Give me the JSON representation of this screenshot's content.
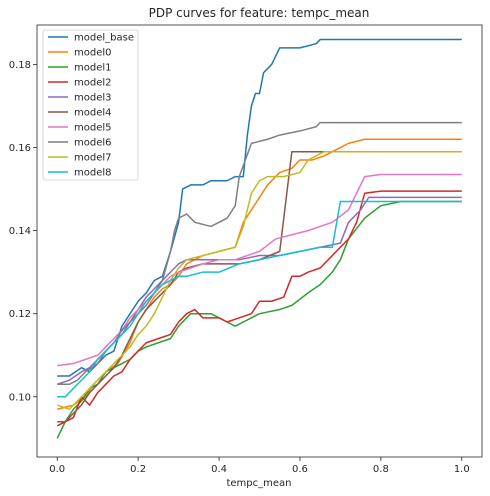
{
  "chart_data": {
    "type": "line",
    "title": "PDP curves for feature: tempc_mean",
    "xlabel": "tempc_mean",
    "ylabel": "",
    "xlim": [
      -0.05,
      1.05
    ],
    "ylim": [
      0.0855,
      0.1895
    ],
    "xticks": [
      0.0,
      0.2,
      0.4,
      0.6,
      0.8,
      1.0
    ],
    "xtick_labels": [
      "0.0",
      "0.2",
      "0.4",
      "0.6",
      "0.8",
      "1.0"
    ],
    "yticks": [
      0.1,
      0.12,
      0.14,
      0.16,
      0.18
    ],
    "ytick_labels": [
      "0.10",
      "0.12",
      "0.14",
      "0.16",
      "0.18"
    ],
    "grid": false,
    "legend_position": "top-left",
    "series": [
      {
        "name": "model_base",
        "color": "#1f77b4",
        "x": [
          0,
          0.03,
          0.06,
          0.08,
          0.1,
          0.12,
          0.14,
          0.16,
          0.18,
          0.2,
          0.22,
          0.24,
          0.26,
          0.28,
          0.3,
          0.31,
          0.33,
          0.36,
          0.38,
          0.4,
          0.42,
          0.44,
          0.46,
          0.47,
          0.48,
          0.49,
          0.5,
          0.51,
          0.53,
          0.55,
          0.6,
          0.64,
          0.65,
          0.7,
          0.8,
          1.0
        ],
        "y": [
          0.105,
          0.105,
          0.107,
          0.106,
          0.108,
          0.11,
          0.111,
          0.117,
          0.12,
          0.123,
          0.125,
          0.128,
          0.129,
          0.135,
          0.142,
          0.15,
          0.151,
          0.151,
          0.152,
          0.152,
          0.152,
          0.153,
          0.153,
          0.163,
          0.17,
          0.173,
          0.173,
          0.178,
          0.18,
          0.184,
          0.184,
          0.185,
          0.186,
          0.186,
          0.186,
          0.186
        ]
      },
      {
        "name": "model0",
        "color": "#ff7f0e",
        "x": [
          0,
          0.04,
          0.07,
          0.09,
          0.12,
          0.15,
          0.18,
          0.2,
          0.22,
          0.24,
          0.26,
          0.28,
          0.3,
          0.32,
          0.36,
          0.4,
          0.44,
          0.46,
          0.48,
          0.5,
          0.52,
          0.55,
          0.58,
          0.6,
          0.63,
          0.66,
          0.68,
          0.7,
          0.72,
          0.76,
          0.8,
          1.0
        ],
        "y": [
          0.097,
          0.098,
          0.1,
          0.103,
          0.106,
          0.108,
          0.113,
          0.118,
          0.121,
          0.124,
          0.126,
          0.127,
          0.129,
          0.132,
          0.134,
          0.135,
          0.136,
          0.142,
          0.145,
          0.148,
          0.151,
          0.154,
          0.155,
          0.157,
          0.157,
          0.158,
          0.159,
          0.16,
          0.161,
          0.162,
          0.162,
          0.162
        ]
      },
      {
        "name": "model1",
        "color": "#2ca02c",
        "x": [
          0,
          0.02,
          0.04,
          0.06,
          0.08,
          0.1,
          0.12,
          0.14,
          0.16,
          0.18,
          0.2,
          0.22,
          0.25,
          0.28,
          0.3,
          0.33,
          0.35,
          0.38,
          0.4,
          0.42,
          0.44,
          0.46,
          0.5,
          0.55,
          0.58,
          0.62,
          0.65,
          0.68,
          0.7,
          0.72,
          0.76,
          0.8,
          0.85,
          1.0
        ],
        "y": [
          0.09,
          0.094,
          0.097,
          0.099,
          0.102,
          0.103,
          0.106,
          0.107,
          0.108,
          0.109,
          0.111,
          0.112,
          0.113,
          0.114,
          0.117,
          0.12,
          0.12,
          0.12,
          0.119,
          0.118,
          0.117,
          0.118,
          0.12,
          0.121,
          0.122,
          0.125,
          0.127,
          0.13,
          0.133,
          0.138,
          0.143,
          0.146,
          0.147,
          0.147
        ]
      },
      {
        "name": "model2",
        "color": "#d62728",
        "x": [
          0,
          0.02,
          0.04,
          0.06,
          0.08,
          0.1,
          0.12,
          0.14,
          0.16,
          0.18,
          0.2,
          0.22,
          0.25,
          0.28,
          0.3,
          0.32,
          0.34,
          0.36,
          0.4,
          0.42,
          0.45,
          0.48,
          0.5,
          0.53,
          0.56,
          0.58,
          0.6,
          0.62,
          0.65,
          0.68,
          0.7,
          0.72,
          0.74,
          0.76,
          0.8,
          1.0
        ],
        "y": [
          0.093,
          0.094,
          0.095,
          0.1,
          0.098,
          0.101,
          0.103,
          0.105,
          0.106,
          0.109,
          0.111,
          0.113,
          0.114,
          0.115,
          0.118,
          0.12,
          0.121,
          0.119,
          0.119,
          0.118,
          0.119,
          0.12,
          0.123,
          0.123,
          0.124,
          0.129,
          0.129,
          0.13,
          0.131,
          0.134,
          0.136,
          0.138,
          0.142,
          0.149,
          0.1495,
          0.1495
        ]
      },
      {
        "name": "model3",
        "color": "#9467bd",
        "x": [
          0,
          0.03,
          0.06,
          0.08,
          0.1,
          0.12,
          0.14,
          0.16,
          0.18,
          0.2,
          0.22,
          0.24,
          0.26,
          0.28,
          0.3,
          0.32,
          0.35,
          0.4,
          0.45,
          0.5,
          0.55,
          0.6,
          0.65,
          0.7,
          0.72,
          0.75,
          0.77,
          0.8,
          1.0
        ],
        "y": [
          0.103,
          0.104,
          0.106,
          0.107,
          0.109,
          0.111,
          0.113,
          0.115,
          0.118,
          0.121,
          0.124,
          0.126,
          0.128,
          0.13,
          0.132,
          0.133,
          0.133,
          0.133,
          0.133,
          0.134,
          0.134,
          0.135,
          0.136,
          0.137,
          0.142,
          0.145,
          0.148,
          0.148,
          0.148
        ]
      },
      {
        "name": "model4",
        "color": "#8c564b",
        "x": [
          0,
          0.02,
          0.04,
          0.06,
          0.08,
          0.1,
          0.12,
          0.14,
          0.16,
          0.18,
          0.2,
          0.22,
          0.25,
          0.28,
          0.3,
          0.32,
          0.36,
          0.4,
          0.45,
          0.5,
          0.55,
          0.58,
          0.6,
          0.7,
          1.0
        ],
        "y": [
          0.094,
          0.094,
          0.096,
          0.098,
          0.101,
          0.103,
          0.105,
          0.107,
          0.11,
          0.114,
          0.118,
          0.121,
          0.124,
          0.127,
          0.13,
          0.131,
          0.132,
          0.132,
          0.132,
          0.133,
          0.135,
          0.159,
          0.159,
          0.159,
          0.159
        ]
      },
      {
        "name": "model5",
        "color": "#e377c2",
        "x": [
          0,
          0.04,
          0.07,
          0.1,
          0.12,
          0.14,
          0.16,
          0.18,
          0.2,
          0.22,
          0.24,
          0.26,
          0.28,
          0.3,
          0.33,
          0.36,
          0.4,
          0.44,
          0.5,
          0.54,
          0.58,
          0.62,
          0.65,
          0.68,
          0.72,
          0.76,
          0.8,
          1.0
        ],
        "y": [
          0.1075,
          0.108,
          0.109,
          0.11,
          0.112,
          0.114,
          0.116,
          0.119,
          0.121,
          0.123,
          0.125,
          0.127,
          0.129,
          0.13,
          0.131,
          0.132,
          0.133,
          0.133,
          0.135,
          0.138,
          0.139,
          0.14,
          0.141,
          0.142,
          0.145,
          0.153,
          0.1535,
          0.1535
        ]
      },
      {
        "name": "model6",
        "color": "#7f7f7f",
        "x": [
          0,
          0.03,
          0.05,
          0.07,
          0.1,
          0.12,
          0.14,
          0.16,
          0.18,
          0.2,
          0.22,
          0.24,
          0.26,
          0.28,
          0.29,
          0.3,
          0.32,
          0.34,
          0.38,
          0.42,
          0.44,
          0.45,
          0.48,
          0.52,
          0.55,
          0.6,
          0.64,
          0.65,
          0.7,
          0.8,
          1.0
        ],
        "y": [
          0.103,
          0.103,
          0.104,
          0.106,
          0.108,
          0.111,
          0.113,
          0.116,
          0.118,
          0.12,
          0.122,
          0.125,
          0.128,
          0.135,
          0.14,
          0.143,
          0.144,
          0.142,
          0.141,
          0.143,
          0.146,
          0.153,
          0.161,
          0.162,
          0.163,
          0.164,
          0.165,
          0.166,
          0.166,
          0.166,
          0.166
        ]
      },
      {
        "name": "model7",
        "color": "#bcbd22",
        "x": [
          0,
          0.03,
          0.05,
          0.08,
          0.1,
          0.12,
          0.14,
          0.16,
          0.18,
          0.2,
          0.22,
          0.24,
          0.26,
          0.28,
          0.3,
          0.32,
          0.36,
          0.4,
          0.44,
          0.46,
          0.48,
          0.5,
          0.52,
          0.56,
          0.6,
          0.62,
          0.64,
          0.66,
          0.7,
          0.8,
          1.0
        ],
        "y": [
          0.098,
          0.097,
          0.099,
          0.102,
          0.104,
          0.106,
          0.108,
          0.11,
          0.112,
          0.115,
          0.117,
          0.12,
          0.124,
          0.128,
          0.131,
          0.133,
          0.134,
          0.135,
          0.136,
          0.141,
          0.149,
          0.152,
          0.153,
          0.153,
          0.154,
          0.157,
          0.158,
          0.159,
          0.159,
          0.159,
          0.159
        ]
      },
      {
        "name": "model8",
        "color": "#17becf",
        "x": [
          0,
          0.02,
          0.04,
          0.06,
          0.08,
          0.1,
          0.12,
          0.14,
          0.16,
          0.18,
          0.2,
          0.22,
          0.24,
          0.26,
          0.28,
          0.3,
          0.32,
          0.36,
          0.4,
          0.45,
          0.5,
          0.55,
          0.6,
          0.65,
          0.68,
          0.7,
          0.72,
          0.8,
          1.0
        ],
        "y": [
          0.1,
          0.1,
          0.102,
          0.104,
          0.106,
          0.109,
          0.111,
          0.113,
          0.115,
          0.117,
          0.12,
          0.123,
          0.125,
          0.127,
          0.128,
          0.129,
          0.129,
          0.13,
          0.13,
          0.132,
          0.133,
          0.134,
          0.135,
          0.136,
          0.136,
          0.147,
          0.147,
          0.147,
          0.147
        ]
      }
    ]
  }
}
